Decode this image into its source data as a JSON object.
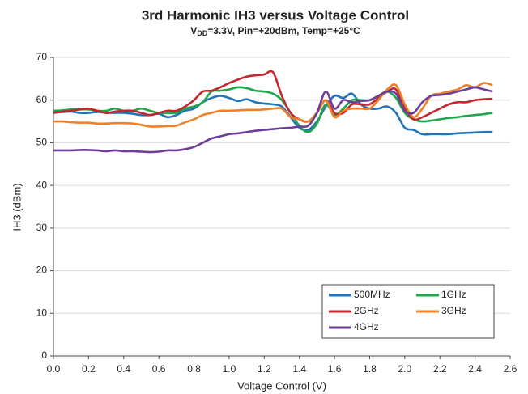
{
  "chart_data": {
    "type": "line",
    "title": "3rd Harmonic IH3 versus Voltage Control",
    "subtitle": {
      "base": "V",
      "sub": "DD",
      "rest": "=3.3V, Pin=+20dBm, Temp=+25°C"
    },
    "x_label": "Voltage Control (V)",
    "y_label": "IH3 (dBm)",
    "xlim": [
      0,
      2.6
    ],
    "ylim": [
      0,
      70
    ],
    "xticks": [
      {
        "value": 0,
        "label": "0.0"
      },
      0.2,
      0.4,
      0.6,
      0.8,
      {
        "value": 1,
        "label": "1.0"
      },
      1.2,
      1.4,
      1.6,
      1.8,
      {
        "value": 2,
        "label": "2.0"
      },
      2.2,
      2.4,
      2.6
    ],
    "yticks": [
      0,
      10,
      20,
      30,
      40,
      50,
      60,
      70
    ],
    "grid": true,
    "legend": "lower right",
    "x": [
      0,
      0.05,
      0.1,
      0.15,
      0.2,
      0.25,
      0.3,
      0.35,
      0.4,
      0.45,
      0.5,
      0.55,
      0.6,
      0.65,
      0.7,
      0.75,
      0.8,
      0.85,
      0.9,
      0.95,
      1,
      1.05,
      1.1,
      1.15,
      1.2,
      1.25,
      1.3,
      1.35,
      1.4,
      1.45,
      1.5,
      1.55,
      1.6,
      1.65,
      1.7,
      1.75,
      1.8,
      1.85,
      1.9,
      1.95,
      2,
      2.05,
      2.1,
      2.15,
      2.2,
      2.25,
      2.3,
      2.35,
      2.4,
      2.45,
      2.5
    ],
    "series": [
      {
        "name": "500MHz",
        "color": "#2273b8",
        "values": [
          57,
          57.2,
          57.3,
          57,
          57,
          57.2,
          57,
          57,
          57,
          56.8,
          56.5,
          56.5,
          56.8,
          56,
          56.5,
          57.5,
          58,
          59.5,
          60.5,
          61,
          60.5,
          59.8,
          60.2,
          59.5,
          59.2,
          59,
          58.5,
          56,
          53.5,
          53,
          55,
          58.5,
          61,
          60.5,
          61.5,
          59,
          58,
          58,
          58.5,
          57,
          53.5,
          53,
          52,
          52,
          52,
          52,
          52.2,
          52.3,
          52.4,
          52.5,
          52.5
        ]
      },
      {
        "name": "1GHz",
        "color": "#1fa64a",
        "values": [
          57.5,
          57.6,
          57.8,
          57.8,
          57.8,
          57.5,
          57.5,
          58,
          57.5,
          57.5,
          58,
          57.5,
          57,
          57,
          57,
          58,
          58.5,
          59.5,
          62,
          62.2,
          62.5,
          63,
          62.8,
          62.2,
          62,
          61.5,
          60,
          57,
          54,
          52.5,
          54.5,
          59,
          56.5,
          58,
          60,
          60,
          60,
          61,
          62,
          60.5,
          57,
          55.5,
          55,
          55.2,
          55.5,
          55.8,
          56,
          56.3,
          56.5,
          56.7,
          57
        ]
      },
      {
        "name": "2GHz",
        "color": "#c1272d",
        "values": [
          57,
          57.3,
          57.5,
          57.8,
          58,
          57.5,
          57,
          57.3,
          57.5,
          57.5,
          57,
          56.5,
          57,
          57.5,
          57.5,
          58.5,
          60,
          62,
          62.2,
          63,
          64,
          64.8,
          65.5,
          65.8,
          66,
          66.5,
          61,
          57,
          55.5,
          55,
          57,
          60,
          57,
          57,
          59,
          59,
          59,
          60.5,
          62,
          62.5,
          58,
          55.5,
          56,
          57,
          58,
          59,
          59.5,
          59.5,
          60,
          60.2,
          60.3
        ]
      },
      {
        "name": "3GHz",
        "color": "#f07f2a",
        "values": [
          55,
          55,
          54.8,
          54.7,
          54.7,
          54.5,
          54.5,
          54.6,
          54.6,
          54.5,
          54.2,
          53.8,
          53.8,
          53.9,
          54,
          54.8,
          55.5,
          56.5,
          57,
          57.5,
          57.5,
          57.6,
          57.7,
          57.7,
          57.8,
          58,
          58,
          56,
          55.5,
          55,
          57,
          60,
          56,
          57.5,
          58,
          58,
          58,
          60,
          62.5,
          63.5,
          59,
          56,
          58,
          61,
          61.5,
          62,
          62.5,
          63.5,
          63,
          64,
          63.5
        ]
      },
      {
        "name": "4GHz",
        "color": "#6b3f98",
        "values": [
          48.2,
          48.2,
          48.2,
          48.3,
          48.3,
          48.2,
          48,
          48.2,
          48,
          48,
          47.9,
          47.8,
          47.9,
          48.2,
          48.2,
          48.5,
          49,
          50,
          51,
          51.5,
          52,
          52.2,
          52.5,
          52.8,
          53,
          53.2,
          53.4,
          53.5,
          53.8,
          54,
          57,
          62,
          58,
          60,
          59.5,
          59.8,
          60,
          61,
          62,
          61.5,
          57.5,
          57,
          59.5,
          61,
          61.2,
          61.5,
          62,
          62.5,
          63,
          62.5,
          62
        ]
      }
    ]
  }
}
